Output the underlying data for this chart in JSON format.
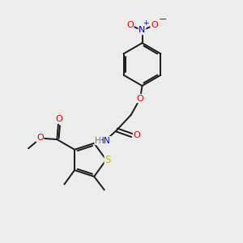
{
  "bg_color": "#ececec",
  "bond_color": "#1a1a1a",
  "atom_colors": {
    "O": "#dd0000",
    "N": "#0000cc",
    "S": "#bbbb00",
    "H": "#777777",
    "C": "#1a1a1a"
  },
  "line_width": 1.4,
  "figsize": [
    3.0,
    3.0
  ],
  "dpi": 100
}
